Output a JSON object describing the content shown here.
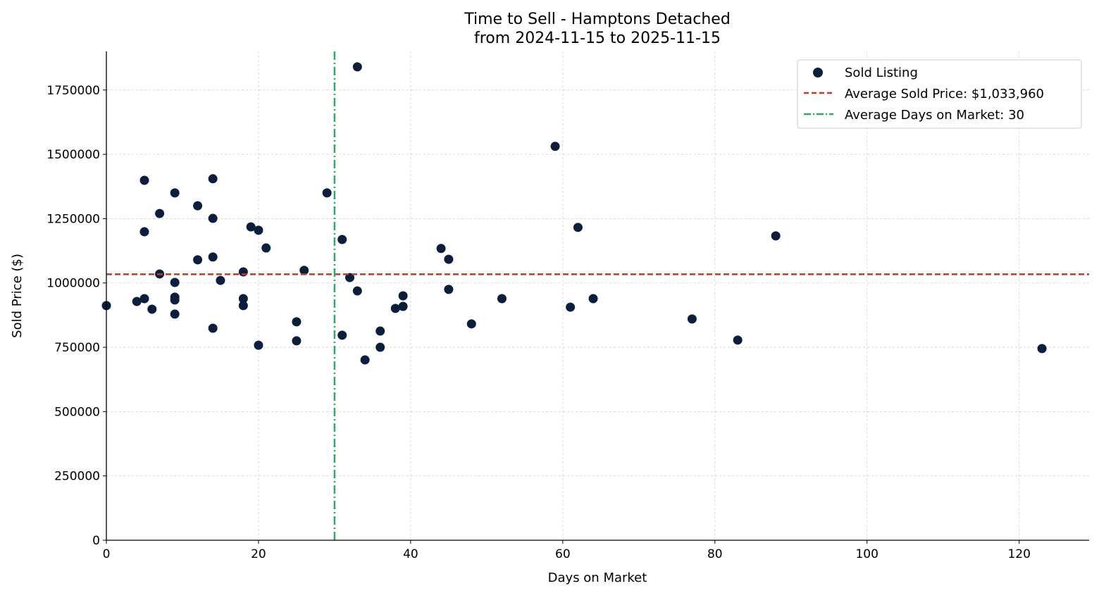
{
  "chart_data": {
    "type": "scatter",
    "title": "Time to Sell - Hamptons Detached",
    "subtitle": "from 2024-11-15 to 2025-11-15",
    "xlabel": "Days on Market",
    "ylabel": "Sold Price ($)",
    "xlim": [
      0,
      129.2
    ],
    "ylim": [
      0,
      1900000
    ],
    "xticks": [
      0,
      20,
      40,
      60,
      80,
      100,
      120
    ],
    "yticks": [
      0,
      250000,
      500000,
      750000,
      1000000,
      1250000,
      1500000,
      1750000
    ],
    "grid": true,
    "legend_position": "top-right",
    "legend": {
      "scatter": "Sold Listing",
      "avg_price": "Average Sold Price: $1,033,960",
      "avg_days": "Average Days on Market: 30"
    },
    "avg_price": 1033960,
    "avg_days": 30,
    "colors": {
      "points": "#0a1f3c",
      "avg_price": "#c0392b",
      "avg_days": "#27ae60"
    },
    "points": [
      [
        0,
        912000
      ],
      [
        4,
        928000
      ],
      [
        5,
        1399000
      ],
      [
        5,
        1199000
      ],
      [
        5,
        939000
      ],
      [
        6,
        898000
      ],
      [
        7,
        1270000
      ],
      [
        7,
        1035000
      ],
      [
        9,
        1350000
      ],
      [
        9,
        1002000
      ],
      [
        9,
        945000
      ],
      [
        9,
        934000
      ],
      [
        9,
        879000
      ],
      [
        12,
        1300000
      ],
      [
        12,
        1090000
      ],
      [
        14,
        1405000
      ],
      [
        14,
        1251000
      ],
      [
        14,
        1101000
      ],
      [
        14,
        824000
      ],
      [
        15,
        1010000
      ],
      [
        18,
        1043000
      ],
      [
        18,
        939000
      ],
      [
        18,
        912000
      ],
      [
        19,
        1218000
      ],
      [
        20,
        1205000
      ],
      [
        20,
        758000
      ],
      [
        21,
        1136000
      ],
      [
        25,
        849000
      ],
      [
        25,
        775000
      ],
      [
        26,
        1049000
      ],
      [
        29,
        1350000
      ],
      [
        31,
        1169000
      ],
      [
        31,
        797000
      ],
      [
        32,
        1021000
      ],
      [
        33,
        1840000
      ],
      [
        33,
        969000
      ],
      [
        34,
        701000
      ],
      [
        36,
        813000
      ],
      [
        36,
        750000
      ],
      [
        38,
        901000
      ],
      [
        39,
        950000
      ],
      [
        39,
        909000
      ],
      [
        44,
        1134000
      ],
      [
        45,
        1092000
      ],
      [
        45,
        975000
      ],
      [
        48,
        841000
      ],
      [
        52,
        939000
      ],
      [
        59,
        1531000
      ],
      [
        61,
        906000
      ],
      [
        62,
        1216000
      ],
      [
        64,
        939000
      ],
      [
        77,
        860000
      ],
      [
        83,
        778000
      ],
      [
        88,
        1183000
      ],
      [
        123,
        745000
      ]
    ]
  }
}
